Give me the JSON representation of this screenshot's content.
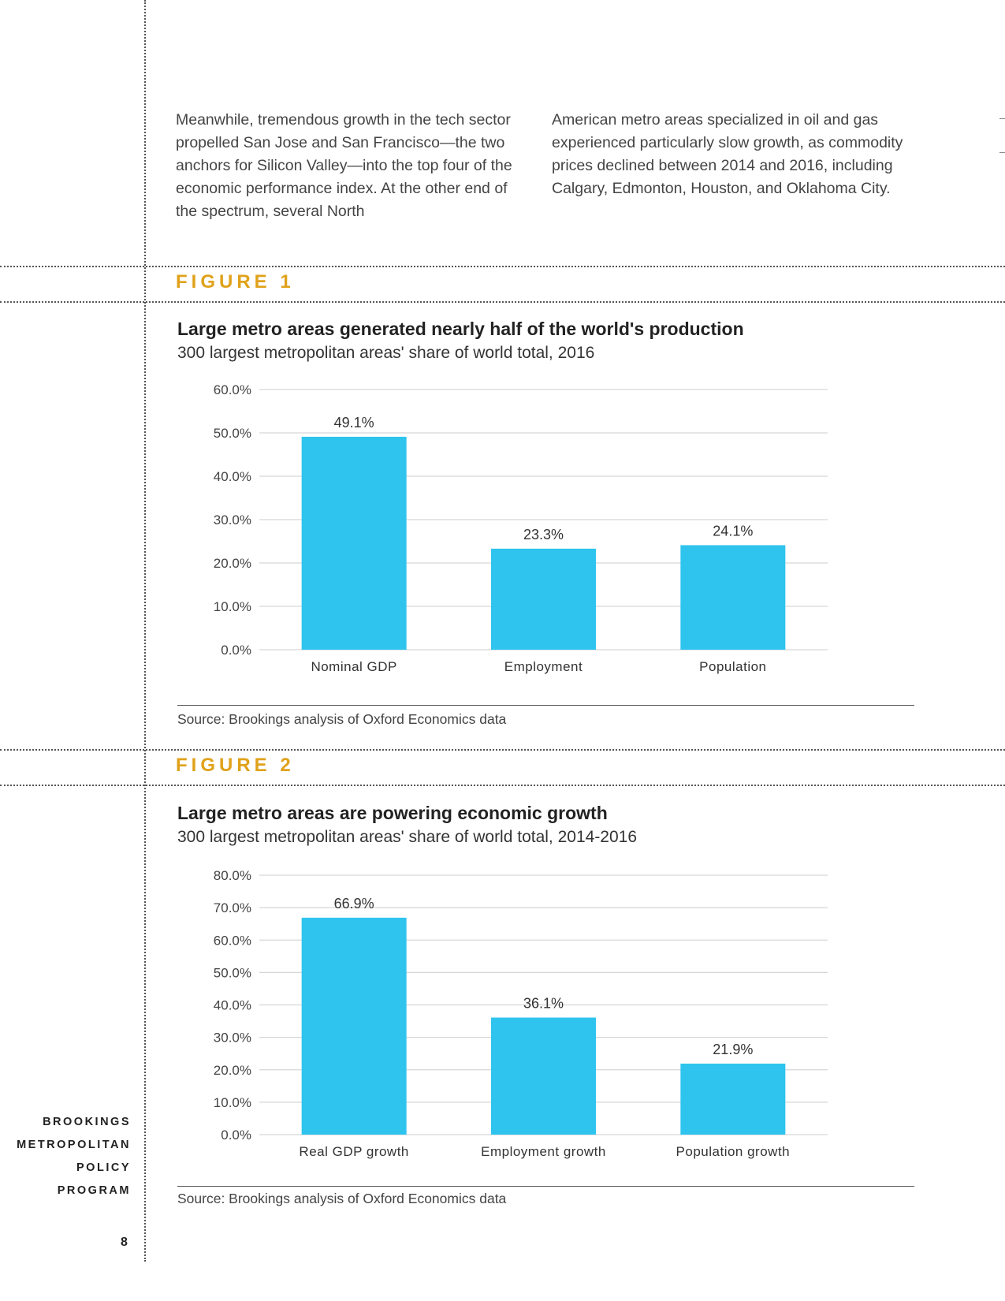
{
  "body_text": {
    "col_left": "Meanwhile, tremendous growth in the tech sector propelled San Jose and San Francisco—the two anchors for Silicon Valley—into the top four of the economic performance index. At the other end of the spectrum, several North",
    "col_right": "American metro areas specialized in oil and gas experienced particularly slow growth, as commodity prices declined between 2014 and 2016, including Calgary, Edmonton, Houston, and Oklahoma City."
  },
  "figure1": {
    "label": "FIGURE 1",
    "title": "Large metro areas generated nearly half of the world's production",
    "subtitle": "300 largest metropolitan areas' share of world total, 2016",
    "source": "Source: Brookings analysis of Oxford Economics data"
  },
  "figure2": {
    "label": "FIGURE 2",
    "title": "Large metro areas are powering economic growth",
    "subtitle": "300 largest metropolitan areas' share of world total, 2014-2016",
    "source": "Source: Brookings analysis of Oxford Economics data"
  },
  "chart_data": [
    {
      "type": "bar",
      "categories": [
        "Nominal GDP",
        "Employment",
        "Population"
      ],
      "values": [
        49.1,
        23.3,
        24.1
      ],
      "value_labels": [
        "49.1%",
        "23.3%",
        "24.1%"
      ],
      "yticks": [
        "0.0%",
        "10.0%",
        "20.0%",
        "30.0%",
        "40.0%",
        "50.0%",
        "60.0%"
      ],
      "ylim": [
        0,
        60
      ],
      "grid": true,
      "color": "#2FC4EE"
    },
    {
      "type": "bar",
      "categories": [
        "Real GDP growth",
        "Employment growth",
        "Population growth"
      ],
      "values": [
        66.9,
        36.1,
        21.9
      ],
      "value_labels": [
        "66.9%",
        "36.1%",
        "21.9%"
      ],
      "yticks": [
        "0.0%",
        "10.0%",
        "20.0%",
        "30.0%",
        "40.0%",
        "50.0%",
        "60.0%",
        "70.0%",
        "80.0%"
      ],
      "ylim": [
        0,
        80
      ],
      "grid": true,
      "color": "#2FC4EE"
    }
  ],
  "sidebar": {
    "brand_lines": [
      "BROOKINGS",
      "METROPOLITAN",
      "POLICY",
      "PROGRAM"
    ],
    "page_number": "8"
  },
  "colors": {
    "figure_label": "#E0A21B",
    "bar": "#2FC4EE",
    "gridline": "#D6D6D6"
  }
}
